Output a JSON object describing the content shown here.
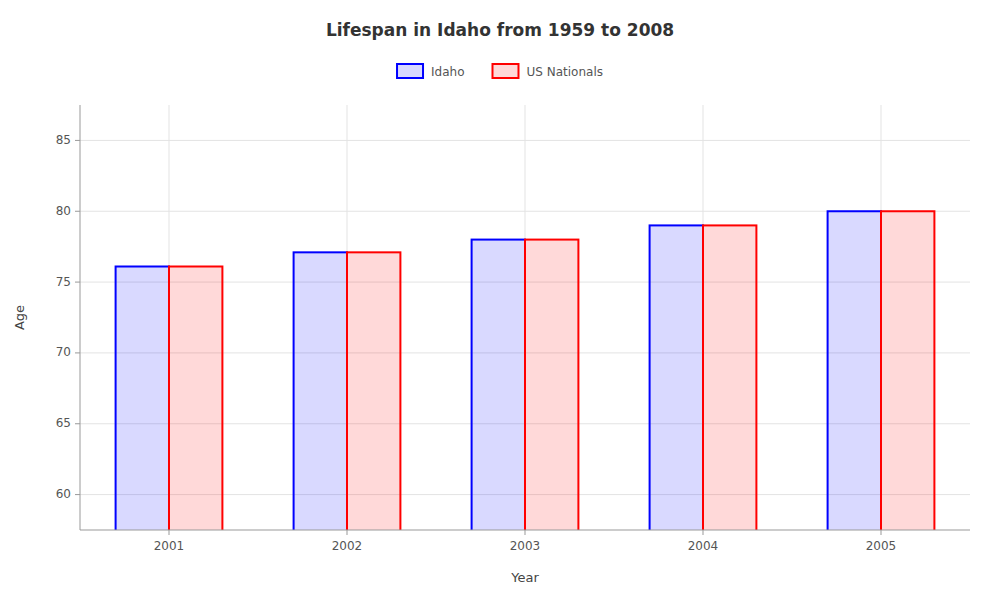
{
  "chart_data": {
    "type": "bar",
    "title": "Lifespan in Idaho from 1959 to 2008",
    "xlabel": "Year",
    "ylabel": "Age",
    "categories": [
      2001,
      2002,
      2003,
      2004,
      2005
    ],
    "series": [
      {
        "name": "Idaho",
        "color": "#0000ff",
        "values": [
          76.1,
          77.1,
          78.0,
          79.0,
          80.0
        ]
      },
      {
        "name": "US Nationals",
        "color": "#ff0000",
        "values": [
          76.1,
          77.1,
          78.0,
          79.0,
          80.0
        ]
      }
    ],
    "ylim": [
      57.5,
      87.5
    ],
    "yticks": [
      60,
      65,
      70,
      75,
      80,
      85
    ],
    "grid": true,
    "legend": "top"
  }
}
